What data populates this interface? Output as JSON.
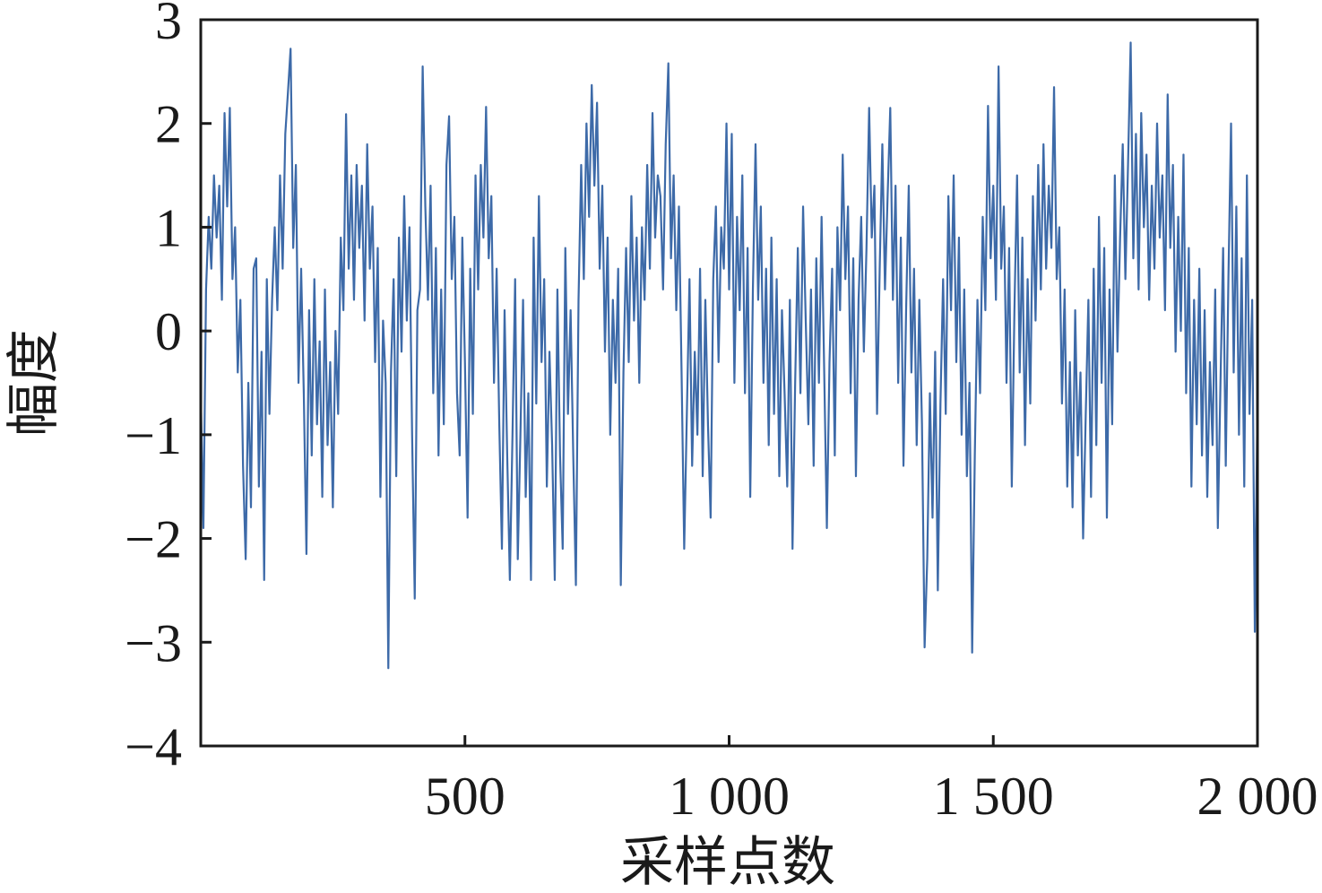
{
  "chart_data": {
    "type": "line",
    "title": "",
    "xlabel": "采样点数",
    "ylabel": "幅度",
    "xlim": [
      0,
      2000
    ],
    "ylim": [
      -4,
      3
    ],
    "grid": false,
    "legend": "none",
    "line_color": "#3d6aa8",
    "frame_color": "#1a1a1a",
    "xticks": [
      {
        "value": 500,
        "label": "500"
      },
      {
        "value": 1000,
        "label": "1 000"
      },
      {
        "value": 1500,
        "label": "1 500"
      },
      {
        "value": 2000,
        "label": "2 000"
      }
    ],
    "yticks": [
      {
        "value": 3,
        "label": "3"
      },
      {
        "value": 2,
        "label": "2"
      },
      {
        "value": 1,
        "label": "1"
      },
      {
        "value": 0,
        "label": "0"
      },
      {
        "value": -1,
        "label": "−1"
      },
      {
        "value": -2,
        "label": "−2"
      },
      {
        "value": -3,
        "label": "−3"
      },
      {
        "value": -4,
        "label": "−4"
      }
    ],
    "series": [
      {
        "x": [
          0,
          5,
          10,
          15,
          20,
          25,
          30,
          35,
          40,
          45,
          50,
          55,
          60,
          65,
          70,
          75,
          80,
          85,
          90,
          95,
          100,
          105,
          110,
          115,
          120,
          125,
          130,
          135,
          140,
          145,
          150,
          155,
          160,
          165,
          170,
          175,
          180,
          185,
          190,
          195,
          200,
          205,
          210,
          215,
          220,
          225,
          230,
          235,
          240,
          245,
          250,
          255,
          260,
          265,
          270,
          275,
          280,
          285,
          290,
          295,
          300,
          305,
          310,
          315,
          320,
          325,
          330,
          335,
          340,
          345,
          350,
          355,
          360,
          365,
          370,
          375,
          380,
          385,
          390,
          395,
          400,
          405,
          410,
          415,
          420,
          425,
          430,
          435,
          440,
          445,
          450,
          455,
          460,
          465,
          470,
          475,
          480,
          485,
          490,
          495,
          500,
          505,
          510,
          515,
          520,
          525,
          530,
          535,
          540,
          545,
          550,
          555,
          560,
          565,
          570,
          575,
          580,
          585,
          590,
          595,
          600,
          605,
          610,
          615,
          620,
          625,
          630,
          635,
          640,
          645,
          650,
          655,
          660,
          665,
          670,
          675,
          680,
          685,
          690,
          695,
          700,
          705,
          710,
          715,
          720,
          725,
          730,
          735,
          740,
          745,
          750,
          755,
          760,
          765,
          770,
          775,
          780,
          785,
          790,
          795,
          800,
          805,
          810,
          815,
          820,
          825,
          830,
          835,
          840,
          845,
          850,
          855,
          860,
          865,
          870,
          875,
          880,
          885,
          890,
          895,
          900,
          905,
          910,
          915,
          920,
          925,
          930,
          935,
          940,
          945,
          950,
          955,
          960,
          965,
          970,
          975,
          980,
          985,
          990,
          995,
          1000,
          1005,
          1010,
          1015,
          1020,
          1025,
          1030,
          1035,
          1040,
          1045,
          1050,
          1055,
          1060,
          1065,
          1070,
          1075,
          1080,
          1085,
          1090,
          1095,
          1100,
          1105,
          1110,
          1115,
          1120,
          1125,
          1130,
          1135,
          1140,
          1145,
          1150,
          1155,
          1160,
          1165,
          1170,
          1175,
          1180,
          1185,
          1190,
          1195,
          1200,
          1205,
          1210,
          1215,
          1220,
          1225,
          1230,
          1235,
          1240,
          1245,
          1250,
          1255,
          1260,
          1265,
          1270,
          1275,
          1280,
          1285,
          1290,
          1295,
          1300,
          1305,
          1310,
          1315,
          1320,
          1325,
          1330,
          1335,
          1340,
          1345,
          1350,
          1355,
          1360,
          1365,
          1370,
          1375,
          1380,
          1385,
          1390,
          1395,
          1400,
          1405,
          1410,
          1415,
          1420,
          1425,
          1430,
          1435,
          1440,
          1445,
          1450,
          1455,
          1460,
          1465,
          1470,
          1475,
          1480,
          1485,
          1490,
          1495,
          1500,
          1505,
          1510,
          1515,
          1520,
          1525,
          1530,
          1535,
          1540,
          1545,
          1550,
          1555,
          1560,
          1565,
          1570,
          1575,
          1580,
          1585,
          1590,
          1595,
          1600,
          1605,
          1610,
          1615,
          1620,
          1625,
          1630,
          1635,
          1640,
          1645,
          1650,
          1655,
          1660,
          1665,
          1670,
          1675,
          1680,
          1685,
          1690,
          1695,
          1700,
          1705,
          1710,
          1715,
          1720,
          1725,
          1730,
          1735,
          1740,
          1745,
          1750,
          1755,
          1760,
          1765,
          1770,
          1775,
          1780,
          1785,
          1790,
          1795,
          1800,
          1805,
          1810,
          1815,
          1820,
          1825,
          1830,
          1835,
          1840,
          1845,
          1850,
          1855,
          1860,
          1865,
          1870,
          1875,
          1880,
          1885,
          1890,
          1895,
          1900,
          1905,
          1910,
          1915,
          1920,
          1925,
          1930,
          1935,
          1940,
          1945,
          1950,
          1955,
          1960,
          1965,
          1970,
          1975,
          1980,
          1985,
          1990,
          1995,
          2000
        ],
        "y": [
          -0.6,
          -1.9,
          0.4,
          1.1,
          0.6,
          1.5,
          0.9,
          1.4,
          0.3,
          2.1,
          1.2,
          2.15,
          0.5,
          1.0,
          -0.4,
          0.3,
          -1.3,
          -2.2,
          -0.5,
          -1.7,
          0.6,
          0.7,
          -1.5,
          -0.2,
          -2.4,
          0.5,
          -0.8,
          0.3,
          1.0,
          0.2,
          1.5,
          0.6,
          1.9,
          2.3,
          2.72,
          0.8,
          1.6,
          -0.5,
          0.6,
          -0.6,
          -2.15,
          0.2,
          -1.2,
          0.5,
          -0.9,
          -0.1,
          -1.6,
          0.4,
          -1.1,
          -0.3,
          -1.7,
          0.0,
          -0.8,
          0.9,
          0.2,
          2.09,
          0.6,
          1.5,
          0.3,
          1.6,
          0.8,
          1.4,
          0.1,
          1.8,
          0.6,
          1.2,
          -0.3,
          0.8,
          -1.6,
          0.1,
          -0.5,
          -3.25,
          -0.4,
          0.5,
          -1.4,
          0.9,
          -0.2,
          1.3,
          0.1,
          1.0,
          -1.0,
          -2.58,
          0.2,
          0.4,
          2.55,
          1.2,
          0.3,
          1.4,
          -0.6,
          0.8,
          -1.2,
          0.4,
          -0.9,
          1.6,
          2.07,
          0.5,
          1.1,
          -0.6,
          -1.2,
          0.9,
          -0.3,
          -1.8,
          0.6,
          -0.8,
          1.5,
          0.4,
          1.6,
          0.9,
          2.16,
          0.7,
          1.3,
          -0.5,
          0.6,
          -0.9,
          -2.1,
          0.2,
          -1.2,
          -2.4,
          -1.0,
          0.5,
          -2.2,
          -1.0,
          0.3,
          -1.6,
          -0.6,
          -2.4,
          0.9,
          -0.7,
          1.3,
          -0.3,
          0.5,
          -1.5,
          -0.2,
          -1.1,
          -2.4,
          0.4,
          -1.2,
          -2.1,
          0.8,
          -0.8,
          0.2,
          -1.2,
          -2.45,
          0.3,
          1.6,
          0.5,
          2.0,
          1.1,
          2.37,
          1.4,
          2.2,
          0.6,
          1.4,
          -0.2,
          0.9,
          -1.0,
          0.3,
          -0.5,
          0.6,
          -2.45,
          -0.4,
          0.8,
          -0.3,
          1.3,
          0.1,
          0.9,
          -0.5,
          1.0,
          0.3,
          1.6,
          0.6,
          2.1,
          0.9,
          1.5,
          1.3,
          0.4,
          1.8,
          2.58,
          0.7,
          1.5,
          0.2,
          1.2,
          -0.4,
          -2.1,
          -0.8,
          0.5,
          -1.3,
          -0.2,
          -1.0,
          0.6,
          -1.4,
          0.3,
          -0.9,
          -1.8,
          0.5,
          1.2,
          -0.3,
          1.0,
          0.6,
          2.0,
          0.4,
          1.9,
          -0.5,
          1.1,
          0.2,
          1.5,
          -0.6,
          0.8,
          -1.6,
          0.4,
          1.8,
          0.3,
          1.2,
          -0.5,
          0.6,
          -1.1,
          0.9,
          -0.8,
          0.5,
          -1.4,
          0.2,
          -0.6,
          -1.5,
          0.3,
          -2.1,
          -0.5,
          0.8,
          -0.6,
          1.2,
          0.1,
          -0.9,
          0.4,
          -1.3,
          0.7,
          -0.5,
          1.1,
          -0.4,
          -1.9,
          -0.3,
          0.6,
          -1.2,
          1.0,
          0.2,
          1.7,
          0.5,
          1.2,
          -0.6,
          0.7,
          -1.4,
          0.3,
          1.1,
          -0.2,
          0.8,
          2.15,
          0.9,
          1.4,
          -0.8,
          0.6,
          1.8,
          0.4,
          1.3,
          2.15,
          0.3,
          1.4,
          -0.5,
          0.9,
          -1.3,
          0.2,
          1.4,
          -0.4,
          0.6,
          -1.1,
          0.3,
          -0.9,
          -3.05,
          -2.2,
          -0.6,
          -1.8,
          -0.2,
          -2.5,
          -0.7,
          0.5,
          -0.8,
          1.3,
          0.2,
          1.5,
          -0.3,
          0.9,
          -1.0,
          0.4,
          -1.4,
          -0.5,
          -3.1,
          -1.2,
          0.3,
          -0.6,
          1.1,
          0.2,
          2.17,
          0.7,
          1.4,
          0.3,
          2.55,
          0.6,
          1.2,
          -0.5,
          0.8,
          -1.5,
          0.2,
          1.5,
          -0.4,
          0.9,
          -1.1,
          0.5,
          -0.7,
          1.3,
          0.1,
          1.6,
          0.4,
          1.8,
          0.6,
          1.4,
          0.8,
          2.35,
          0.5,
          1.0,
          -0.7,
          0.4,
          -1.5,
          -0.3,
          -1.7,
          0.2,
          -1.2,
          -0.4,
          -2.0,
          -0.8,
          0.3,
          -1.6,
          0.6,
          -1.1,
          1.1,
          -0.5,
          0.8,
          -1.8,
          0.4,
          -0.9,
          1.5,
          -0.2,
          0.9,
          1.8,
          0.5,
          1.6,
          2.78,
          0.7,
          1.9,
          0.4,
          2.1,
          1.0,
          1.7,
          0.3,
          1.4,
          0.6,
          2.0,
          0.9,
          1.5,
          0.2,
          2.28,
          0.8,
          1.6,
          -0.2,
          1.1,
          0.0,
          1.7,
          -0.6,
          0.8,
          -1.5,
          0.3,
          -0.9,
          0.6,
          -1.2,
          0.2,
          -1.6,
          -0.3,
          -1.1,
          0.4,
          -1.9,
          -0.5,
          0.8,
          -1.3,
          0.5,
          2.0,
          -0.4,
          1.2,
          -1.0,
          0.7,
          -1.5,
          1.5,
          -0.8,
          0.3,
          -2.9,
          -0.7
        ]
      }
    ]
  }
}
